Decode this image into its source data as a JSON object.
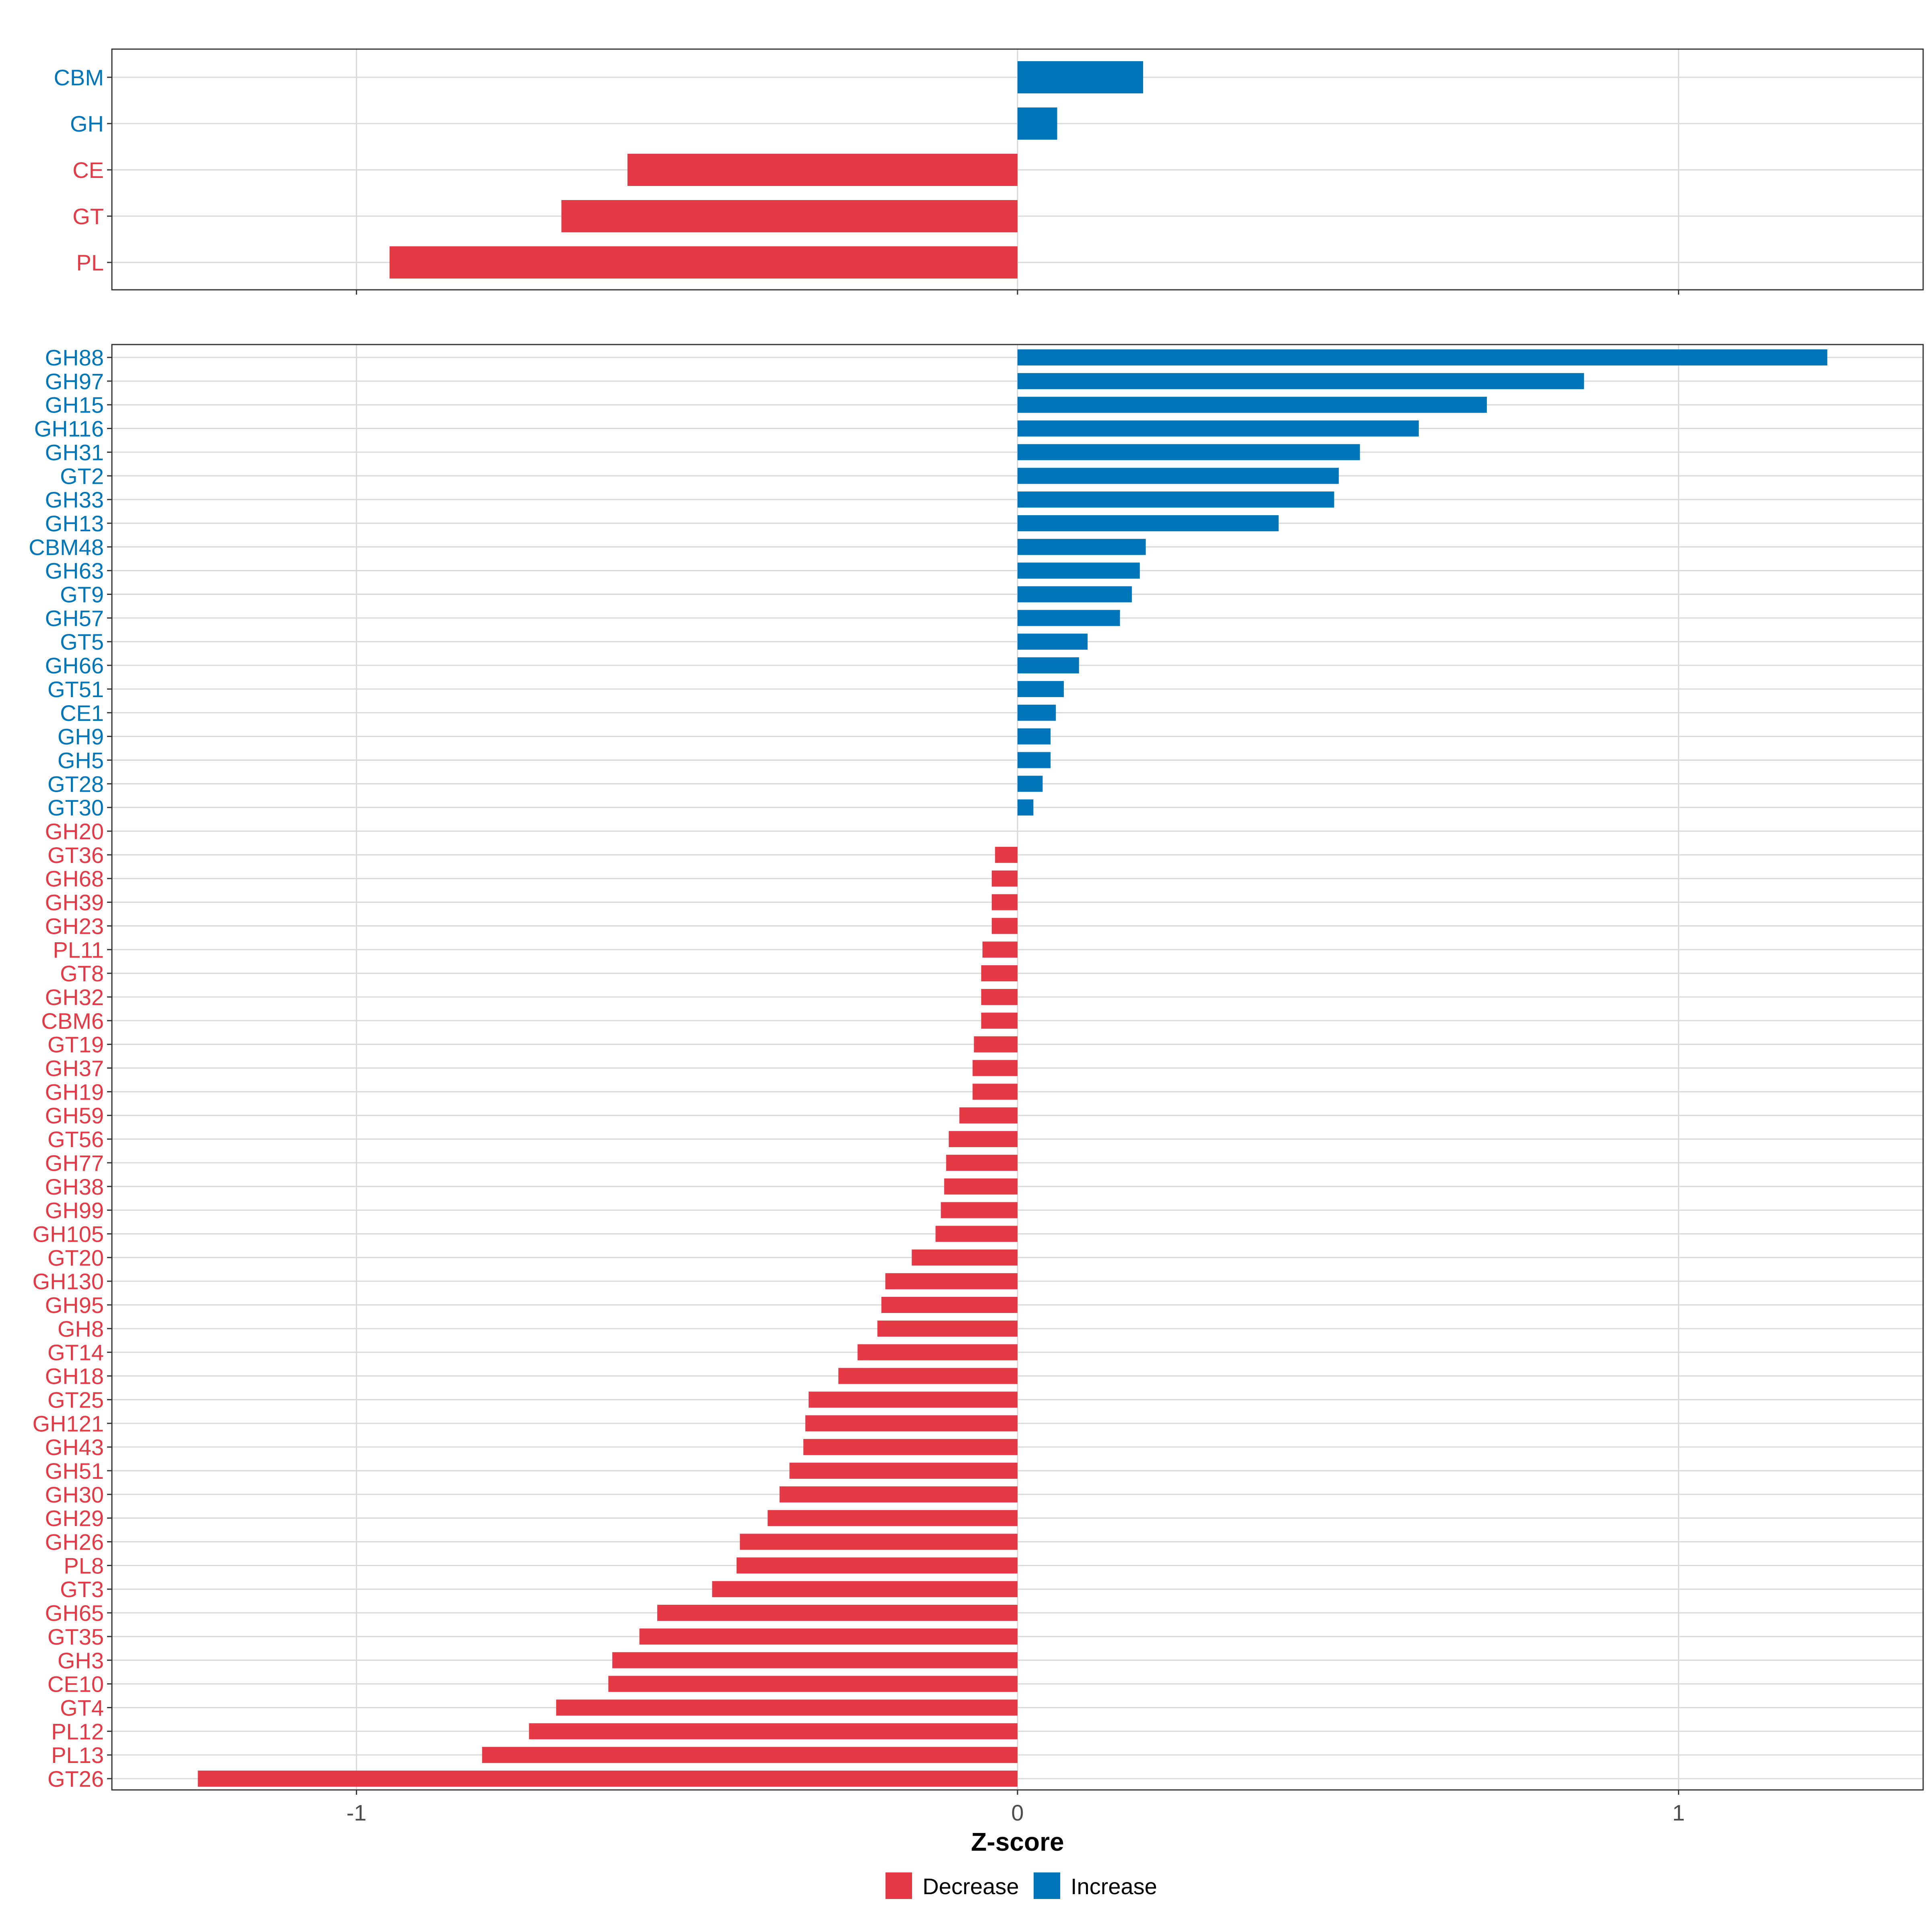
{
  "colors": {
    "increase": "#0076BA",
    "decrease": "#E63946",
    "grid": "#D9D9D9",
    "panel_border": "#333333",
    "tick_text": "#4D4D4D"
  },
  "chart_data": [
    {
      "type": "bar",
      "orientation": "horizontal",
      "panel": "top",
      "categories": [
        "CBM",
        "GH",
        "CE",
        "GT",
        "PL"
      ],
      "values": [
        0.19,
        0.06,
        -0.59,
        -0.69,
        -0.95
      ],
      "direction": [
        "Increase",
        "Increase",
        "Decrease",
        "Decrease",
        "Decrease"
      ],
      "xlim": [
        -1.37,
        1.37
      ],
      "xticks": [
        -1,
        0,
        1
      ],
      "grid": true
    },
    {
      "type": "bar",
      "orientation": "horizontal",
      "panel": "bottom",
      "categories": [
        "GH88",
        "GH97",
        "GH15",
        "GH116",
        "GH31",
        "GT2",
        "GH33",
        "GH13",
        "CBM48",
        "GH63",
        "GT9",
        "GH57",
        "GT5",
        "GH66",
        "GT51",
        "CE1",
        "GH9",
        "GH5",
        "GT28",
        "GT30",
        "GH20",
        "GT36",
        "GH68",
        "GH39",
        "GH23",
        "PL11",
        "GT8",
        "GH32",
        "CBM6",
        "GT19",
        "GH37",
        "GH19",
        "GH59",
        "GT56",
        "GH77",
        "GH38",
        "GH99",
        "GH105",
        "GT20",
        "GH130",
        "GH95",
        "GH8",
        "GT14",
        "GH18",
        "GT25",
        "GH121",
        "GH43",
        "GH51",
        "GH30",
        "GH29",
        "GH26",
        "PL8",
        "GT3",
        "GH65",
        "GT35",
        "GH3",
        "CE10",
        "GT4",
        "PL12",
        "PL13",
        "GT26"
      ],
      "values": [
        1.225,
        0.857,
        0.71,
        0.607,
        0.518,
        0.486,
        0.479,
        0.395,
        0.194,
        0.185,
        0.173,
        0.155,
        0.106,
        0.093,
        0.07,
        0.058,
        0.05,
        0.05,
        0.038,
        0.024,
        0.0,
        -0.034,
        -0.039,
        -0.039,
        -0.039,
        -0.053,
        -0.055,
        -0.055,
        -0.055,
        -0.066,
        -0.068,
        -0.068,
        -0.088,
        -0.104,
        -0.108,
        -0.111,
        -0.116,
        -0.124,
        -0.16,
        -0.2,
        -0.206,
        -0.212,
        -0.242,
        -0.271,
        -0.316,
        -0.321,
        -0.324,
        -0.345,
        -0.36,
        -0.378,
        -0.42,
        -0.425,
        -0.462,
        -0.545,
        -0.572,
        -0.613,
        -0.619,
        -0.698,
        -0.739,
        -0.81,
        -1.24
      ],
      "increase_count": 20,
      "xlim": [
        -1.37,
        1.37
      ],
      "xticks": [
        -1,
        0,
        1
      ],
      "xlabel": "Z-score",
      "grid": true
    }
  ],
  "legend": {
    "placement": "bottom-center",
    "items": [
      {
        "label": "Decrease",
        "color_key": "decrease"
      },
      {
        "label": "Increase",
        "color_key": "increase"
      }
    ]
  }
}
